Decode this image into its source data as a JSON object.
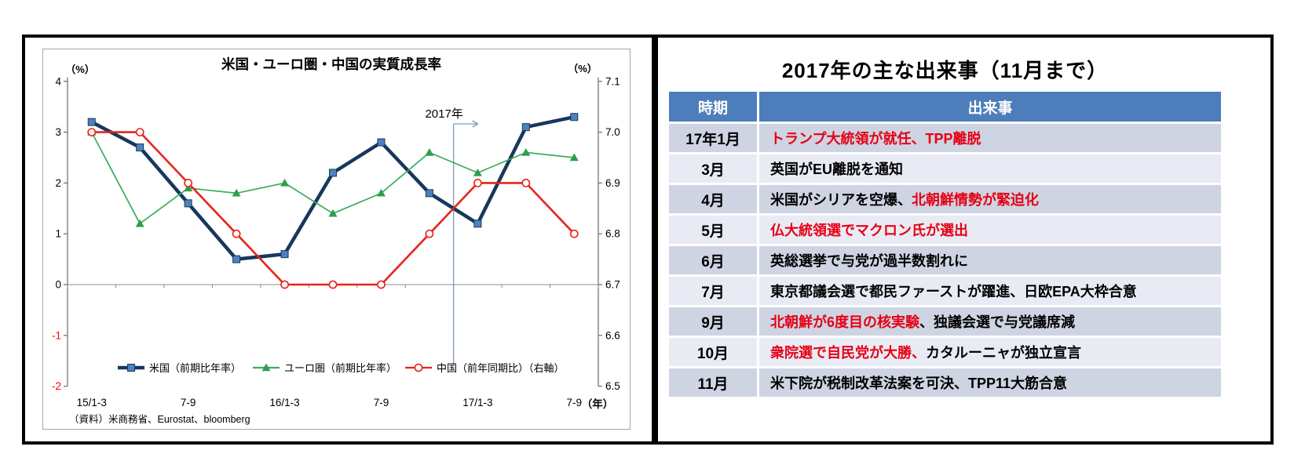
{
  "chart_data": {
    "type": "line",
    "title": "米国・ユーロ圏・中国の実質成長率",
    "left_axis": {
      "unit": "（%）",
      "ticks": [
        "4",
        "3",
        "2",
        "1",
        "0",
        "-1",
        "-2"
      ],
      "min": -2,
      "max": 4,
      "red_ticks": [
        "-1",
        "-2"
      ],
      "red_color": "#ff0000"
    },
    "right_axis": {
      "unit": "（%）",
      "ticks": [
        "7.1",
        "7.0",
        "6.9",
        "6.8",
        "6.7",
        "6.6",
        "6.5"
      ],
      "min": 6.5,
      "max": 7.1
    },
    "x_labels": [
      {
        "i": 0,
        "label": "15/1-3"
      },
      {
        "i": 2,
        "label": "7-9"
      },
      {
        "i": 4,
        "label": "16/1-3"
      },
      {
        "i": 6,
        "label": "7-9"
      },
      {
        "i": 8,
        "label": "17/1-3"
      },
      {
        "i": 10,
        "label": "7-9"
      }
    ],
    "x_unit": "（年）",
    "annotation": {
      "label": "2017年",
      "boundary_index": 8,
      "color": "#7e9cc0"
    },
    "series": [
      {
        "name": "米国（前期比年率）",
        "axis": "left",
        "marker": "square",
        "line_color": "#17375e",
        "marker_fill": "#4f81bd",
        "line_width": 4.5,
        "values": [
          3.2,
          2.7,
          1.6,
          0.5,
          0.6,
          2.2,
          2.8,
          1.8,
          1.2,
          3.1,
          3.3
        ]
      },
      {
        "name": "ユーロ圏（前期比年率）",
        "axis": "left",
        "marker": "triangle",
        "line_color": "#3aad5a",
        "marker_fill": "#2e9e4f",
        "line_width": 1.7,
        "values": [
          3.0,
          1.2,
          1.9,
          1.8,
          2.0,
          1.4,
          1.8,
          2.6,
          2.2,
          2.6,
          2.5
        ]
      },
      {
        "name": "中国（前年同期比）（右軸）",
        "axis": "right",
        "marker": "circle-open",
        "line_color": "#e8231a",
        "marker_fill": "#ffffff",
        "line_width": 2.6,
        "values": [
          7.0,
          7.0,
          6.9,
          6.8,
          6.7,
          6.7,
          6.7,
          6.8,
          6.9,
          6.9,
          6.8
        ]
      }
    ],
    "legend_position": "bottom-inside",
    "source": "（資料）米商務省、Eurostat、bloomberg"
  },
  "events_panel": {
    "title": "2017年の主な出来事（11月まで）",
    "table": {
      "headers": [
        "時期",
        "出来事"
      ],
      "rows": [
        {
          "period": "17年1月",
          "segments": [
            {
              "text": "トランプ大統領が就任、TPP離脱",
              "red": true
            }
          ]
        },
        {
          "period": "3月",
          "segments": [
            {
              "text": "英国がEU離脱を通知",
              "red": false
            }
          ]
        },
        {
          "period": "4月",
          "segments": [
            {
              "text": "米国がシリアを空爆、",
              "red": false
            },
            {
              "text": "北朝鮮情勢が緊迫化",
              "red": true
            }
          ]
        },
        {
          "period": "5月",
          "segments": [
            {
              "text": "仏大統領選でマクロン氏が選出",
              "red": true
            }
          ]
        },
        {
          "period": "6月",
          "segments": [
            {
              "text": "英総選挙で与党が過半数割れに",
              "red": false
            }
          ]
        },
        {
          "period": "7月",
          "segments": [
            {
              "text": "東京都議会選で都民ファーストが躍進、日欧EPA大枠合意",
              "red": false
            }
          ]
        },
        {
          "period": "9月",
          "segments": [
            {
              "text": "北朝鮮が6度目の核実験",
              "red": true
            },
            {
              "text": "、独議会選で与党議席減",
              "red": false
            }
          ]
        },
        {
          "period": "10月",
          "segments": [
            {
              "text": "衆院選で自民党が大勝、",
              "red": true
            },
            {
              "text": "カタルーニャが独立宣言",
              "red": false
            }
          ]
        },
        {
          "period": "11月",
          "segments": [
            {
              "text": "米下院が税制改革法案を可決、TPP11大筋合意",
              "red": false
            }
          ]
        }
      ]
    },
    "colors": {
      "header_bg": "#4d7ebb",
      "header_text": "#ffffff",
      "row_dark": "#ced4e2",
      "row_light": "#e9ebf4",
      "red_text": "#e60014"
    }
  }
}
